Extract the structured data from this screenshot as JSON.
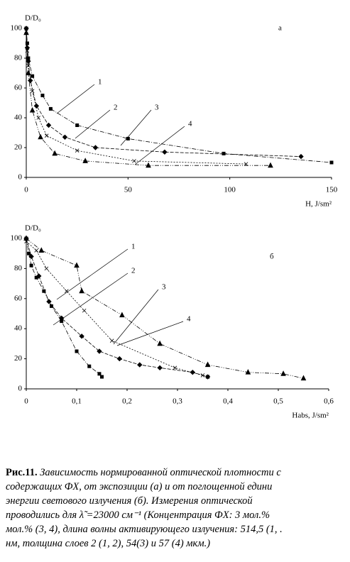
{
  "chart_data": [
    {
      "type": "line",
      "ylabel": "D/D₀",
      "xlabel": "H, J/sm²",
      "annotation": "а",
      "xlim": [
        0,
        150
      ],
      "xticks": [
        0,
        50,
        100,
        150
      ],
      "ylim": [
        0,
        100
      ],
      "yticks": [
        0,
        20,
        40,
        60,
        80,
        100
      ],
      "series": [
        {
          "name": "1",
          "color": "#000000",
          "marker": "square",
          "x": [
            0,
            0.5,
            1,
            3,
            8,
            12,
            25,
            50,
            97,
            150
          ],
          "values": [
            100,
            90,
            80,
            68,
            55,
            46,
            35,
            26,
            16,
            10
          ]
        },
        {
          "name": "2",
          "color": "#000000",
          "marker": "diamond",
          "x": [
            0,
            0.5,
            1,
            2,
            5,
            11,
            19,
            34,
            68,
            135
          ],
          "values": [
            100,
            87,
            78,
            65,
            48,
            35,
            27,
            20,
            17,
            14
          ]
        },
        {
          "name": "3",
          "color": "#000000",
          "marker": "cross",
          "x": [
            0,
            0.5,
            1,
            3,
            6,
            10,
            25,
            53,
            108
          ],
          "values": [
            98,
            85,
            75,
            58,
            40,
            28,
            18,
            11,
            9
          ]
        },
        {
          "name": "4",
          "color": "#000000",
          "marker": "triangle",
          "x": [
            0,
            1,
            3,
            7,
            14,
            29,
            60,
            120
          ],
          "values": [
            97,
            70,
            45,
            27,
            16,
            11,
            8,
            8
          ]
        }
      ]
    },
    {
      "type": "line",
      "ylabel": "D/D₀",
      "xlabel": "Habs, J/sm²",
      "annotation": "б",
      "xlim": [
        0,
        0.6
      ],
      "xticks": [
        0,
        {
          "value": 0.1,
          "label": "0,1"
        },
        {
          "value": 0.2,
          "label": "0,2"
        },
        {
          "value": 0.3,
          "label": "0,3"
        },
        {
          "value": 0.4,
          "label": "0,4"
        },
        {
          "value": 0.5,
          "label": "0,5"
        },
        {
          "value": 0.6,
          "label": "0,6"
        }
      ],
      "ylim": [
        0,
        100
      ],
      "yticks": [
        0,
        20,
        40,
        60,
        80,
        100
      ],
      "series": [
        {
          "name": "1",
          "color": "#000000",
          "marker": "square",
          "x": [
            0,
            0.005,
            0.01,
            0.02,
            0.035,
            0.05,
            0.07,
            0.1,
            0.125,
            0.145,
            0.15
          ],
          "values": [
            100,
            90,
            82,
            74,
            65,
            55,
            45,
            25,
            15,
            10,
            8
          ]
        },
        {
          "name": "2",
          "color": "#000000",
          "marker": "diamond",
          "x": [
            0,
            0.01,
            0.025,
            0.045,
            0.07,
            0.11,
            0.145,
            0.185,
            0.225,
            0.265,
            0.33,
            0.36
          ],
          "values": [
            100,
            88,
            75,
            58,
            47,
            35,
            25,
            20,
            16,
            14,
            11,
            8
          ]
        },
        {
          "name": "3",
          "color": "#000000",
          "marker": "cross",
          "x": [
            0,
            0.02,
            0.04,
            0.08,
            0.115,
            0.17,
            0.295,
            0.35,
            0.36
          ],
          "values": [
            98,
            92,
            80,
            65,
            52,
            32,
            14,
            9,
            8
          ]
        },
        {
          "name": "4",
          "color": "#000000",
          "marker": "triangle",
          "x": [
            0,
            0.03,
            0.1,
            0.11,
            0.19,
            0.265,
            0.36,
            0.44,
            0.51,
            0.55
          ],
          "values": [
            100,
            92,
            82,
            65,
            49,
            30,
            16,
            11,
            10,
            7
          ]
        }
      ]
    }
  ],
  "caption": {
    "label": "Рис.11.",
    "lines": [
      "Зависимость нормированной оптической плотности с",
      "содержащих ФХ, от экспозиции (а) и от поглощенной едини",
      "энергии светового излучения (б). Измерения оптической",
      "проводились для λ̃ =23000 см⁻¹ (Концентрация ФХ: 3 мол.%",
      "мол.% (3, 4), длина волны активирующего излучения: 514,5 (1, .",
      "нм, толщина слоев 2 (1, 2), 54(3) и 57 (4) мкм.)"
    ]
  }
}
